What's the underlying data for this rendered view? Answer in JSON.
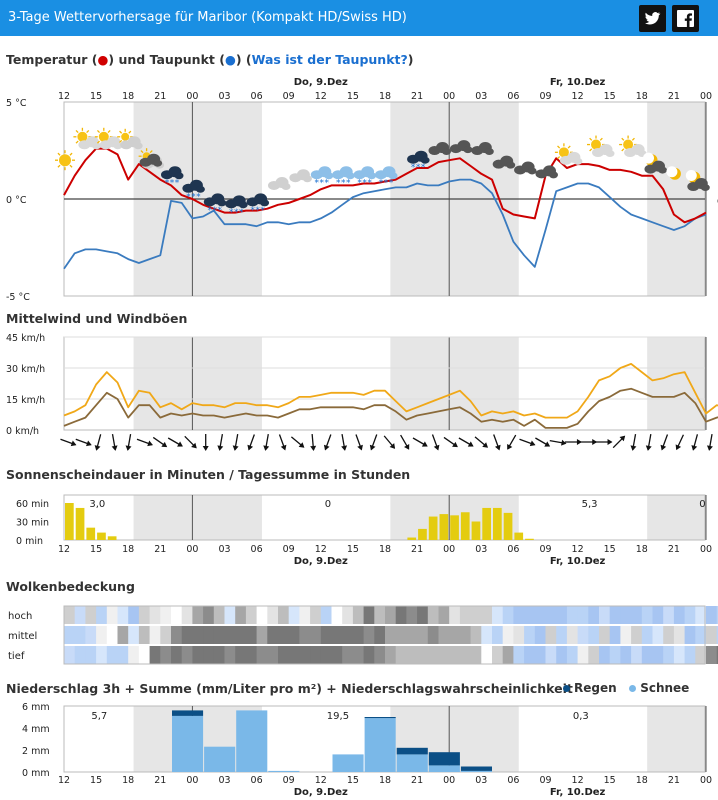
{
  "header": {
    "title": "3-Tage Wettervorhersage für Maribor (Kompakt HD/Swiss HD)",
    "twitter_icon": "twitter-icon",
    "facebook_icon": "facebook-icon"
  },
  "colors": {
    "header": "#1a8fe3",
    "temperature": "#cc0000",
    "dewpoint": "#3a7bbf",
    "mean_wind": "#8a6a3a",
    "gusts": "#f0a818",
    "sunshine": "#e4cc10",
    "rain": "#0b4f86",
    "snow": "#7ab8e8",
    "night_band": "#e6e6e6"
  },
  "days": {
    "d1": "Do, 9.Dez",
    "d2": "Fr, 10.Dez"
  },
  "hours": [
    "12",
    "15",
    "18",
    "21",
    "00",
    "03",
    "06",
    "09",
    "12",
    "15",
    "18",
    "21",
    "00",
    "03",
    "06",
    "09",
    "12",
    "15",
    "18",
    "21",
    "00"
  ],
  "hour_ticks_lower": [
    "12",
    "15",
    "18",
    "21",
    "00",
    "03",
    "06",
    "09",
    "12",
    "15",
    "18",
    "21",
    "00",
    "03",
    "06",
    "09",
    "12",
    "15",
    "18",
    "21",
    "00"
  ],
  "sections": {
    "temp": {
      "title_a": "Temperatur (",
      "dot_red": "●",
      "title_b": ") und Taupunkt (",
      "dot_blue": "●",
      "title_c": ") (",
      "link": "Was ist der Taupunkt?",
      "title_d": ")"
    },
    "wind": {
      "title": "Mittelwind und Windböen"
    },
    "sun": {
      "title": "Sonnenscheindauer in Minuten / Tagessumme in Stunden"
    },
    "cloud": {
      "title": "Wolkenbedeckung"
    },
    "precip": {
      "title": "Niederschlag 3h + Summe (mm/Liter pro m²) + Niederschlagswahrscheinlichkeit",
      "legend_rain": "Regen",
      "legend_snow": "Schnee"
    }
  },
  "chart_data": [
    {
      "type": "line",
      "title": "Temperatur und Taupunkt",
      "x_start": "2021-12-08 12:00",
      "x_step_hours": 1,
      "yticks": [
        "5 °C",
        "0 °C",
        "-5 °C"
      ],
      "ylim": [
        -5,
        5
      ],
      "series": [
        {
          "name": "Temperatur",
          "values": [
            0.2,
            1.2,
            2.0,
            2.6,
            2.6,
            2.3,
            1.0,
            1.8,
            1.4,
            1.0,
            0.7,
            0.2,
            0.0,
            -0.3,
            -0.5,
            -0.7,
            -0.7,
            -0.6,
            -0.6,
            -0.5,
            -0.3,
            -0.2,
            0.0,
            0.2,
            0.5,
            0.7,
            0.7,
            0.7,
            0.8,
            0.8,
            0.9,
            1.0,
            1.3,
            1.6,
            1.6,
            1.9,
            2.0,
            2.1,
            1.7,
            1.3,
            1.0,
            -0.5,
            -0.8,
            -0.9,
            -1.0,
            1.2,
            2.1,
            1.6,
            1.8,
            1.8,
            1.7,
            1.5,
            1.5,
            1.4,
            1.2,
            1.2,
            0.5,
            -0.8,
            -1.2,
            -1.0,
            -0.7
          ]
        },
        {
          "name": "Taupunkt",
          "values": [
            -3.6,
            -2.8,
            -2.6,
            -2.6,
            -2.7,
            -2.8,
            -3.1,
            -3.3,
            -3.1,
            -2.9,
            -0.1,
            -0.2,
            -1.0,
            -0.9,
            -0.6,
            -1.3,
            -1.3,
            -1.3,
            -1.4,
            -1.2,
            -1.2,
            -1.3,
            -1.2,
            -1.2,
            -1.0,
            -0.7,
            -0.3,
            0.1,
            0.3,
            0.4,
            0.5,
            0.6,
            0.6,
            0.8,
            0.7,
            0.7,
            0.9,
            1.0,
            1.0,
            0.8,
            0.3,
            -0.8,
            -2.2,
            -2.9,
            -3.5,
            -1.6,
            0.4,
            0.6,
            0.8,
            0.8,
            0.6,
            0.1,
            -0.4,
            -0.8,
            -1.0,
            -1.2,
            -1.4,
            -1.6,
            -1.4,
            -1.0,
            -0.8
          ]
        }
      ],
      "icons": [
        "sun",
        "sun-cloud",
        "sun-cloud",
        "cloud-sun",
        "cloud-sun",
        "dark-cloud",
        "dark-snow",
        "dark-snow",
        "dark-snow",
        "dark-snow",
        "dark-snow",
        "cloud",
        "cloud",
        "snow",
        "snow",
        "snow",
        "snow",
        "dark-snow",
        "dark-cloud",
        "dark-cloud",
        "dark-cloud",
        "dark-cloud",
        "dark-cloud",
        "dark-cloud",
        "sun-cloud",
        "sun-cloud",
        "sun-cloud",
        "moon-cloud",
        "moon",
        "moon-cloud",
        "dark-cloud",
        "dark-cloud"
      ]
    },
    {
      "type": "line",
      "title": "Mittelwind und Windböen",
      "yticks": [
        "45 km/h",
        "30 km/h",
        "15 km/h",
        "0 km/h"
      ],
      "ylim": [
        0,
        45
      ],
      "series": [
        {
          "name": "Windböen",
          "values": [
            7,
            9,
            12,
            22,
            28,
            23,
            11,
            19,
            18,
            11,
            13,
            10,
            13,
            12,
            12,
            11,
            13,
            13,
            12,
            12,
            11,
            13,
            16,
            16,
            17,
            18,
            18,
            18,
            17,
            19,
            19,
            14,
            9,
            11,
            13,
            15,
            17,
            19,
            14,
            7,
            9,
            8,
            9,
            7,
            8,
            6,
            6,
            6,
            9,
            16,
            24,
            26,
            30,
            32,
            28,
            24,
            25,
            27,
            28,
            18,
            8,
            12,
            11
          ]
        },
        {
          "name": "Mittelwind",
          "values": [
            2,
            4,
            6,
            12,
            18,
            15,
            6,
            12,
            12,
            6,
            8,
            7,
            8,
            7,
            7,
            6,
            7,
            8,
            7,
            7,
            6,
            8,
            10,
            10,
            11,
            11,
            11,
            11,
            10,
            12,
            12,
            9,
            5,
            7,
            8,
            9,
            10,
            11,
            8,
            4,
            5,
            4,
            5,
            2,
            5,
            1,
            1,
            1,
            3,
            9,
            14,
            16,
            19,
            20,
            18,
            16,
            16,
            16,
            18,
            13,
            4,
            6,
            7
          ]
        }
      ],
      "directions": [
        290,
        290,
        15,
        350,
        10,
        290,
        305,
        300,
        315,
        0,
        10,
        10,
        20,
        10,
        340,
        310,
        355,
        20,
        350,
        340,
        20,
        320,
        330,
        300,
        340,
        305,
        300,
        310,
        340,
        30,
        290,
        300,
        280,
        270,
        270,
        270,
        225,
        10,
        10,
        20,
        25,
        15,
        10,
        0,
        5
      ]
    },
    {
      "type": "bar",
      "title": "Sonnenscheindauer in Minuten / Tagessumme in Stunden",
      "yticks": [
        "60 min",
        "30 min",
        "0 min"
      ],
      "ylim": [
        0,
        60
      ],
      "day_totals": [
        "3,0",
        "0",
        "5,3",
        "0"
      ],
      "values_by_hour": {
        "12": 60,
        "13": 52,
        "14": 20,
        "15": 12,
        "16": 6,
        "44": 4,
        "45": 18,
        "46": 38,
        "47": 42,
        "48": 40,
        "49": 45,
        "50": 30,
        "51": 52,
        "52": 52,
        "53": 44,
        "54": 12,
        "55": 2
      }
    },
    {
      "type": "heatmap",
      "title": "Wolkenbedeckung",
      "rows": [
        "hoch",
        "mittel",
        "tief"
      ]
    },
    {
      "type": "bar",
      "title": "Niederschlag 3h + Summe",
      "yticks": [
        "6 mm",
        "4 mm",
        "2 mm",
        "0 mm"
      ],
      "ylim": [
        0,
        6
      ],
      "sums": [
        "5,7",
        "19,5",
        "0,3"
      ],
      "bars": [
        {
          "x": "21",
          "snow": 5.1,
          "rain": 0.5
        },
        {
          "x": "00",
          "snow": 2.3,
          "rain": 0.0
        },
        {
          "x": "03",
          "snow": 5.6,
          "rain": 0.0
        },
        {
          "x": "06",
          "snow": 0.1,
          "rain": 0.0
        },
        {
          "x": "12",
          "snow": 1.6,
          "rain": 0.0
        },
        {
          "x": "15",
          "snow": 4.9,
          "rain": 0.1
        },
        {
          "x": "18",
          "snow": 1.6,
          "rain": 0.6
        },
        {
          "x": "21",
          "snow": 0.6,
          "rain": 1.2
        },
        {
          "x": "00",
          "snow": 0.1,
          "rain": 0.4
        }
      ]
    }
  ]
}
